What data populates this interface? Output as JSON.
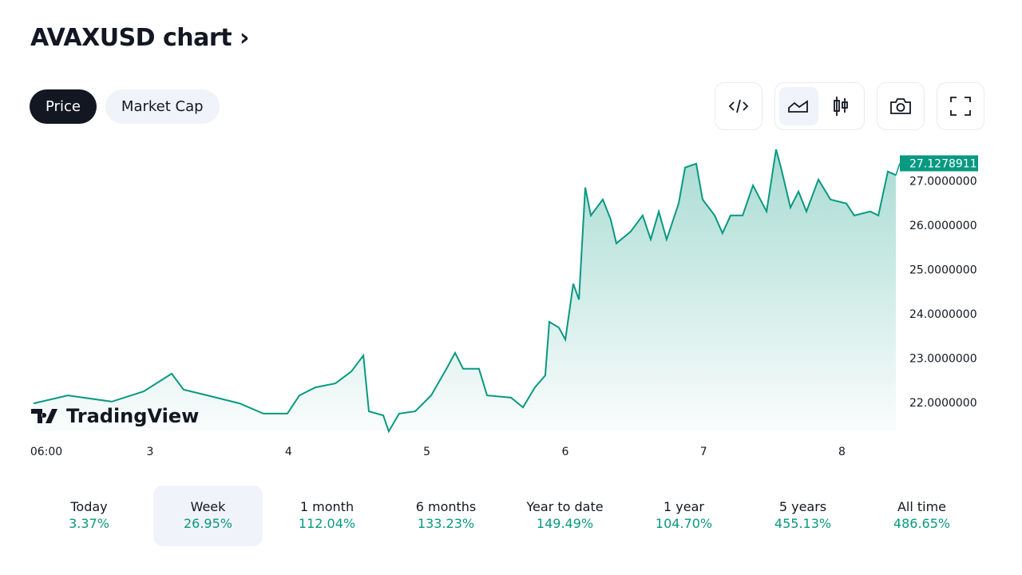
{
  "header": {
    "title": "AVAXUSD chart",
    "chevron": "›"
  },
  "tabs": [
    {
      "label": "Price",
      "active": true
    },
    {
      "label": "Market Cap",
      "active": false
    }
  ],
  "toolbar": {
    "icons": [
      "embed-code-icon",
      "area-chart-icon",
      "candlestick-chart-icon",
      "camera-icon",
      "fullscreen-icon"
    ]
  },
  "logo": {
    "text": "TradingView"
  },
  "colors": {
    "line": "#089981",
    "accent": "#131722",
    "tag": "#089981"
  },
  "chart_data": {
    "type": "area",
    "title": "AVAXUSD",
    "xlabel": "",
    "ylabel": "",
    "current_price_label": "27.1278911",
    "current_price": 27.1278911,
    "xlim": [
      2.158,
      8.39
    ],
    "ylim": [
      21.35,
      27.71
    ],
    "y_ticks": [
      22,
      23,
      24,
      25,
      26,
      27
    ],
    "y_tick_labels": [
      "22.0000000",
      "23.0000000",
      "24.0000000",
      "25.0000000",
      "26.0000000",
      "27.0000000"
    ],
    "x_ticks": [
      2.25,
      3,
      4,
      5,
      6,
      7,
      8
    ],
    "x_tick_labels": [
      "06:00",
      "3",
      "4",
      "5",
      "6",
      "7",
      "8"
    ],
    "grid": false,
    "series": [
      {
        "name": "AVAXUSD",
        "points": [
          [
            2.158,
            21.98
          ],
          [
            2.406,
            22.16
          ],
          [
            2.723,
            22.02
          ],
          [
            2.954,
            22.25
          ],
          [
            3.156,
            22.65
          ],
          [
            3.242,
            22.29
          ],
          [
            3.415,
            22.16
          ],
          [
            3.646,
            21.98
          ],
          [
            3.819,
            21.75
          ],
          [
            3.992,
            21.75
          ],
          [
            4.079,
            22.16
          ],
          [
            4.194,
            22.34
          ],
          [
            4.339,
            22.43
          ],
          [
            4.454,
            22.7
          ],
          [
            4.541,
            23.06
          ],
          [
            4.581,
            21.8
          ],
          [
            4.685,
            21.71
          ],
          [
            4.725,
            21.35
          ],
          [
            4.8,
            21.75
          ],
          [
            4.916,
            21.8
          ],
          [
            5.031,
            22.16
          ],
          [
            5.147,
            22.79
          ],
          [
            5.204,
            23.12
          ],
          [
            5.262,
            22.76
          ],
          [
            5.377,
            22.76
          ],
          [
            5.435,
            22.16
          ],
          [
            5.608,
            22.11
          ],
          [
            5.695,
            21.89
          ],
          [
            5.781,
            22.34
          ],
          [
            5.856,
            22.61
          ],
          [
            5.885,
            23.82
          ],
          [
            5.954,
            23.69
          ],
          [
            6.001,
            23.42
          ],
          [
            6.058,
            24.68
          ],
          [
            6.099,
            24.32
          ],
          [
            6.145,
            26.85
          ],
          [
            6.185,
            26.22
          ],
          [
            6.272,
            26.58
          ],
          [
            6.329,
            26.13
          ],
          [
            6.37,
            25.59
          ],
          [
            6.474,
            25.86
          ],
          [
            6.56,
            26.22
          ],
          [
            6.618,
            25.68
          ],
          [
            6.676,
            26.31
          ],
          [
            6.733,
            25.68
          ],
          [
            6.82,
            26.49
          ],
          [
            6.866,
            27.3
          ],
          [
            6.947,
            27.39
          ],
          [
            6.993,
            26.58
          ],
          [
            7.08,
            26.22
          ],
          [
            7.137,
            25.82
          ],
          [
            7.195,
            26.22
          ],
          [
            7.282,
            26.22
          ],
          [
            7.357,
            26.9
          ],
          [
            7.455,
            26.31
          ],
          [
            7.524,
            27.71
          ],
          [
            7.559,
            27.3
          ],
          [
            7.628,
            26.4
          ],
          [
            7.686,
            26.76
          ],
          [
            7.743,
            26.31
          ],
          [
            7.83,
            27.03
          ],
          [
            7.917,
            26.58
          ],
          [
            8.032,
            26.49
          ],
          [
            8.089,
            26.22
          ],
          [
            8.205,
            26.31
          ],
          [
            8.263,
            26.22
          ],
          [
            8.332,
            27.21
          ],
          [
            8.39,
            27.13
          ]
        ]
      }
    ]
  },
  "stats": [
    {
      "label": "Today",
      "value": "3.37%"
    },
    {
      "label": "Week",
      "value": "26.95%",
      "selected": true
    },
    {
      "label": "1 month",
      "value": "112.04%"
    },
    {
      "label": "6 months",
      "value": "133.23%"
    },
    {
      "label": "Year to date",
      "value": "149.49%"
    },
    {
      "label": "1 year",
      "value": "104.70%"
    },
    {
      "label": "5 years",
      "value": "455.13%"
    },
    {
      "label": "All time",
      "value": "486.65%"
    }
  ]
}
